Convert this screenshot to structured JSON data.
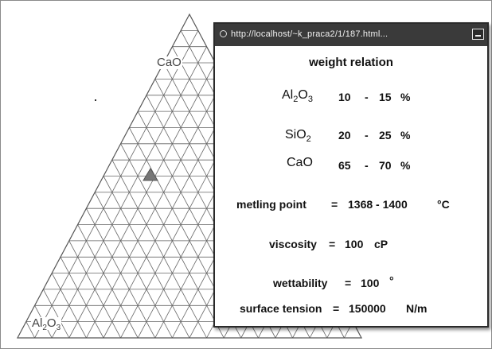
{
  "diagram": {
    "vertex_top": {
      "element": "CaO"
    },
    "vertex_bottom_left": {
      "element": "Al",
      "sub1": "2",
      "mid": "O",
      "sub2": "3"
    },
    "marker_color": "#777777",
    "grid_color": "#666666"
  },
  "popup": {
    "url": "http://localhost/~k_praca2/1/187.html...",
    "heading": "weight relation",
    "composition": [
      {
        "element": "Al",
        "sub1": "2",
        "mid": "O",
        "sub2": "3",
        "low": "10",
        "dash": "-",
        "high": "15",
        "unit": "%"
      },
      {
        "element": "SiO",
        "sub1": "2",
        "mid": "",
        "sub2": "",
        "low": "20",
        "dash": "-",
        "high": "25",
        "unit": "%"
      },
      {
        "element": "CaO",
        "sub1": "",
        "mid": "",
        "sub2": "",
        "low": "65",
        "dash": "-",
        "high": "70",
        "unit": "%"
      }
    ],
    "melting": {
      "label": "metling point",
      "eq": "=",
      "value": "1368 - 1400",
      "unit": "°C"
    },
    "viscosity": {
      "label": "viscosity",
      "eq": "=",
      "value": "100",
      "unit": "cP"
    },
    "wettability": {
      "label": "wettability",
      "eq": "=",
      "value": "100",
      "unit": "°"
    },
    "surface_tension": {
      "label": "surface tension",
      "eq": "=",
      "value": "150000",
      "unit": "N/m"
    }
  }
}
